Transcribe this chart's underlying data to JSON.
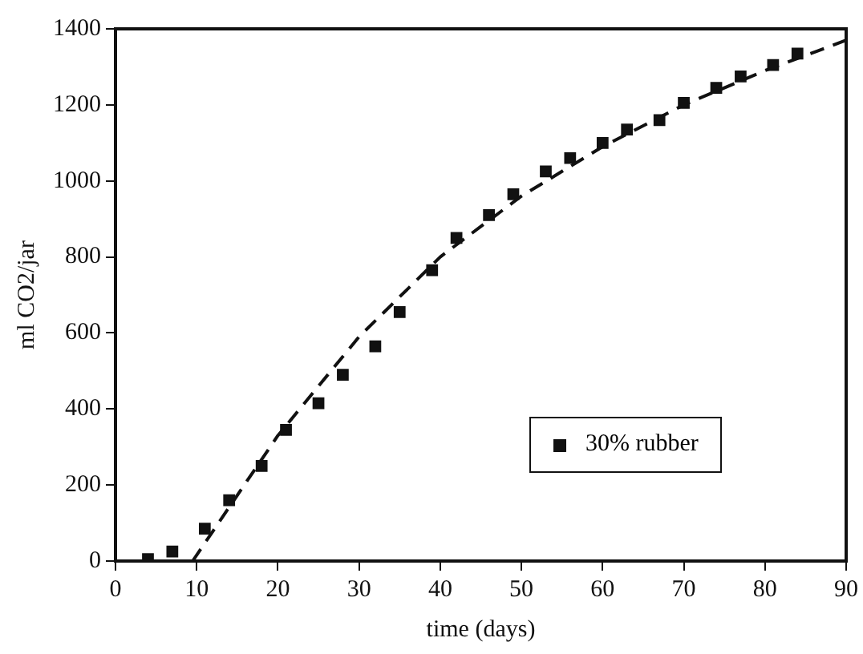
{
  "chart_data": {
    "type": "scatter",
    "xlabel": "time (days)",
    "ylabel": "ml CO2/jar",
    "xlim": [
      0,
      90
    ],
    "xticks": [
      0,
      10,
      20,
      30,
      40,
      50,
      60,
      70,
      80,
      90
    ],
    "ylim": [
      0,
      1400
    ],
    "yticks": [
      0,
      200,
      400,
      600,
      800,
      1000,
      1200,
      1400
    ],
    "grid": false,
    "legend": "bottom right",
    "marker": "square",
    "series": [
      {
        "name": "30% rubber",
        "color": "#111111",
        "x": [
          4,
          7,
          11,
          14,
          18,
          21,
          25,
          28,
          32,
          35,
          39,
          42,
          46,
          49,
          53,
          56,
          60,
          63,
          67,
          70,
          74,
          77,
          81,
          84
        ],
        "values": [
          5,
          25,
          85,
          160,
          250,
          345,
          415,
          490,
          565,
          655,
          765,
          850,
          910,
          965,
          1025,
          1060,
          1100,
          1135,
          1160,
          1205,
          1245,
          1275,
          1305,
          1335
        ]
      },
      {
        "type": "line",
        "color": "#111111",
        "line_style": "dashed",
        "marker": "none",
        "x": [
          9.5,
          20,
          30,
          40,
          50,
          60,
          70,
          80,
          90
        ],
        "values": [
          0,
          330,
          590,
          800,
          960,
          1090,
          1200,
          1290,
          1370
        ]
      }
    ]
  }
}
